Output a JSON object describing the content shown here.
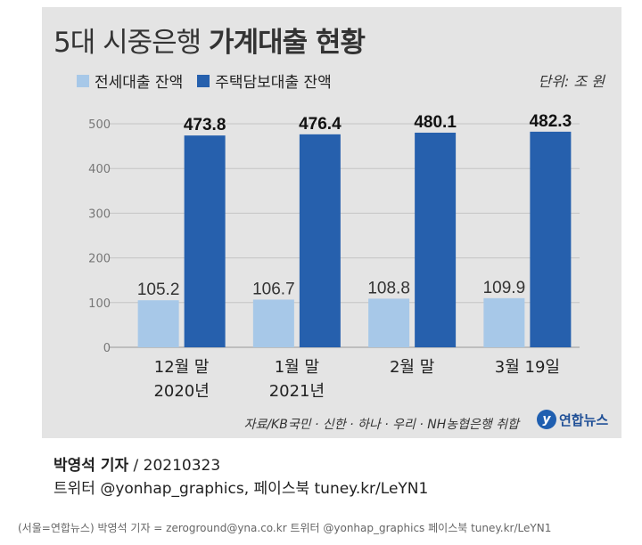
{
  "title_light": "5대 시중은행",
  "title_bold": "가계대출 현황",
  "unit": "단위: 조 원",
  "source": "자료/KB국민 · 신한 · 하나 · 우리 · NH농협은행 취합",
  "logo": {
    "mark": "y",
    "text": "연합뉴스"
  },
  "credit": {
    "reporter": "박영석 기자",
    "date": "/  20210323",
    "social": "트위터 @yonhap_graphics, 페이스북 tuney.kr/LeYN1"
  },
  "footer": "(서울=연합뉴스) 박영석 기자 = zeroground@yna.co.kr 트위터 @yonhap_graphics 페이스북 tuney.kr/LeYN1",
  "chart_data": {
    "type": "bar",
    "categories": [
      [
        "12월 말",
        "2020년"
      ],
      [
        "1월 말",
        "2021년"
      ],
      [
        "2월 말"
      ],
      [
        "3월 19일"
      ]
    ],
    "series": [
      {
        "name": "전세대출 잔액",
        "color": "#a7c8e8",
        "values": [
          105.2,
          106.7,
          108.8,
          109.9
        ]
      },
      {
        "name": "주택담보대출 잔액",
        "color": "#2660ad",
        "values": [
          473.8,
          476.4,
          480.1,
          482.3
        ]
      }
    ],
    "yticks": [
      0,
      100,
      200,
      300,
      400,
      500
    ],
    "ylim": [
      0,
      530
    ],
    "grid": true,
    "legend": "top-left"
  }
}
